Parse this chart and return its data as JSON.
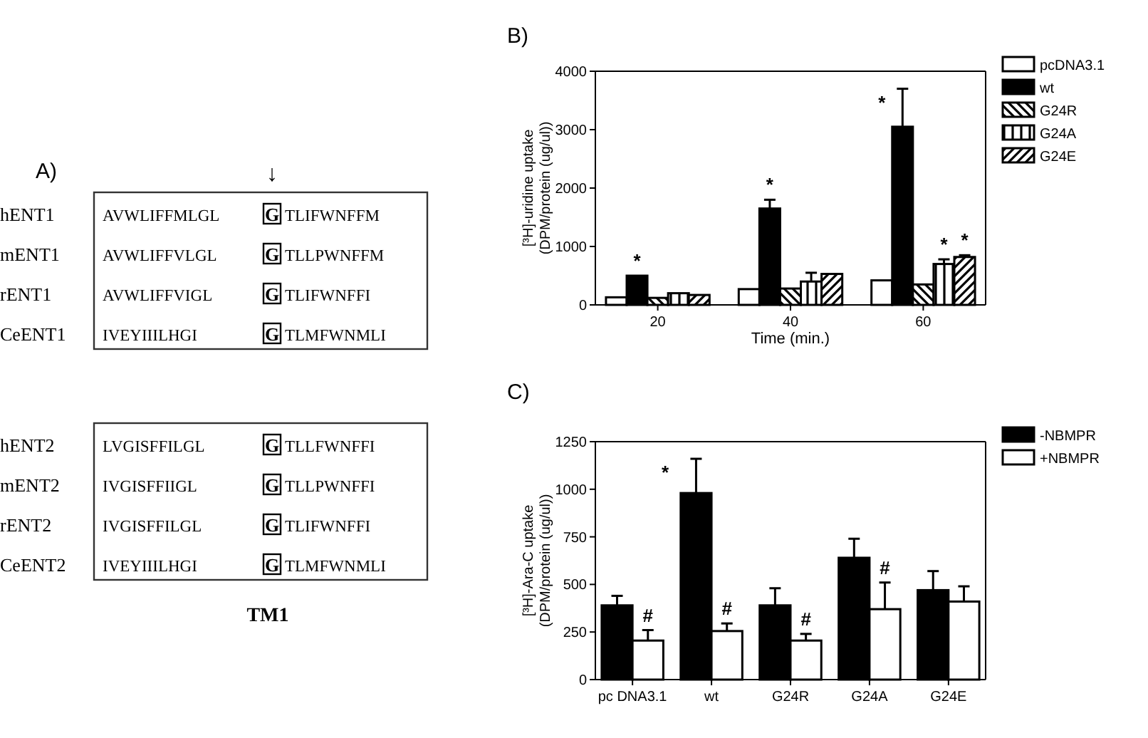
{
  "chart_data": [
    {
      "type": "other",
      "title": "A)",
      "categories": [
        "hENT1",
        "mENT1",
        "rENT1",
        "CeENT1",
        "hENT2",
        "mENT2",
        "rENT2",
        "CeENT2"
      ],
      "annotations": [
        "↓",
        "AVWLIFFMLGL G TLIFWNFFM",
        "AVWLIFFVLGL G TLLPWNFFM",
        "AVWLIFFVIGL G TLIFWNFFI",
        "IVEYIIILHGI G TLMFWNMLI",
        "LVGISFFILGL G TLLFWNFFI",
        "IVGISFFIIGL G TLLPWNFFI",
        "IVGISFFILGL G TLIFWNFFI",
        "IVEYIIILHGI G TLMFWNMLI",
        "TM1"
      ]
    },
    {
      "type": "bar",
      "title": "B)",
      "xlabel": "Time (min.)",
      "ylabel": "[³H]-uridine uptake\n(DPM/protein (ug/ul))",
      "categories": [
        "20",
        "40",
        "60"
      ],
      "series": [
        {
          "name": "pcDNA3.1",
          "color": "#ffffff",
          "values": [
            130,
            270,
            420
          ]
        },
        {
          "name": "wt",
          "color": "#000000",
          "values": [
            500,
            1650,
            3050
          ],
          "errors": [
            null,
            150,
            650
          ]
        },
        {
          "name": "G24R",
          "color": "#000000",
          "values": [
            120,
            280,
            350
          ]
        },
        {
          "name": "G24A",
          "color": "#000000",
          "values": [
            200,
            400,
            700
          ],
          "errors": [
            null,
            150,
            80
          ]
        },
        {
          "name": "G24E",
          "color": "#000000",
          "values": [
            170,
            530,
            820
          ],
          "errors": [
            null,
            null,
            30
          ]
        }
      ],
      "ylim": [
        0,
        4000
      ],
      "yticks": [
        0,
        1000,
        2000,
        3000,
        4000
      ],
      "legend": "right",
      "grid": false,
      "annotations": [
        "*",
        "*",
        "*",
        "*",
        "*"
      ]
    },
    {
      "type": "bar",
      "title": "C)",
      "ylabel": "[³H]-Ara-C uptake\n(DPM/protein (ug/ul))",
      "categories": [
        "pc DNA3.1",
        "wt",
        "G24R",
        "G24A",
        "G24E"
      ],
      "series": [
        {
          "name": "-NBMPR",
          "color": "#000000",
          "values": [
            390,
            980,
            390,
            640,
            470
          ],
          "errors": [
            50,
            180,
            90,
            100,
            100
          ]
        },
        {
          "name": "+NBMPR",
          "color": "#ffffff",
          "values": [
            205,
            255,
            205,
            370,
            410
          ],
          "errors": [
            55,
            40,
            35,
            140,
            80
          ]
        }
      ],
      "ylim": [
        0,
        1250
      ],
      "yticks": [
        0,
        250,
        500,
        750,
        1000,
        1250
      ],
      "legend": "right",
      "grid": false,
      "annotations": [
        "*",
        "#",
        "#",
        "#",
        "#"
      ]
    }
  ]
}
